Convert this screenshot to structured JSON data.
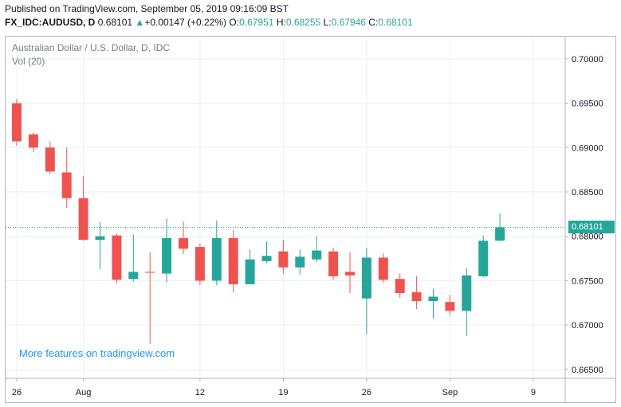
{
  "header": {
    "published": "Published on TradingView.com, September 05, 2019 09:16:09 BST",
    "symbol": "FX_IDC:AUDUSD, D",
    "last": "0.68101",
    "change_arrow": "▲",
    "change": "+0.00147 (+0.22%)",
    "o_label": "O:",
    "o_value": "0.67951",
    "h_label": "H:",
    "h_value": "0.68255",
    "l_label": "L:",
    "l_value": "0.67946",
    "c_label": "C:",
    "c_value": "0.68101"
  },
  "legend": {
    "title": "Australian Dollar / U.S. Dollar, D, IDC",
    "volume": "Vol (20)"
  },
  "promo_link": "More features on tradingview.com",
  "colors": {
    "up": "#26a69a",
    "down": "#ef5350",
    "grid": "#e9eff5",
    "axis_text": "#131722",
    "last_price_line": "#26a69a",
    "promo": "#2196f3"
  },
  "chart_data": {
    "type": "candlestick",
    "ylim": [
      0.664,
      0.7025
    ],
    "y_ticks": [
      "0.70000",
      "0.69500",
      "0.69000",
      "0.68500",
      "0.68000",
      "0.67500",
      "0.67000",
      "0.66500"
    ],
    "y_tick_values": [
      0.7,
      0.695,
      0.69,
      0.685,
      0.68,
      0.675,
      0.67,
      0.665
    ],
    "x_ticks": [
      "26",
      "Aug",
      "12",
      "19",
      "26",
      "Sep",
      "9"
    ],
    "x_tick_indices": [
      0,
      4,
      11,
      16,
      21,
      26,
      31
    ],
    "last_price": 0.68101,
    "last_price_label": "0.68101",
    "grid": true,
    "candles": [
      {
        "date": "2019-07-26",
        "o": 0.695,
        "h": 0.6955,
        "l": 0.6902,
        "c": 0.6907
      },
      {
        "date": "2019-07-29",
        "o": 0.6915,
        "h": 0.6917,
        "l": 0.6895,
        "c": 0.69
      },
      {
        "date": "2019-07-30",
        "o": 0.69,
        "h": 0.6907,
        "l": 0.687,
        "c": 0.6873
      },
      {
        "date": "2019-07-31",
        "o": 0.6872,
        "h": 0.69,
        "l": 0.6832,
        "c": 0.6843
      },
      {
        "date": "2019-08-01",
        "o": 0.6843,
        "h": 0.6868,
        "l": 0.6795,
        "c": 0.6796
      },
      {
        "date": "2019-08-02",
        "o": 0.6796,
        "h": 0.6816,
        "l": 0.6763,
        "c": 0.68
      },
      {
        "date": "2019-08-05",
        "o": 0.6801,
        "h": 0.6803,
        "l": 0.6747,
        "c": 0.6751
      },
      {
        "date": "2019-08-06",
        "o": 0.6752,
        "h": 0.6802,
        "l": 0.6749,
        "c": 0.676
      },
      {
        "date": "2019-08-07",
        "o": 0.676,
        "h": 0.6782,
        "l": 0.6679,
        "c": 0.6759
      },
      {
        "date": "2019-08-08",
        "o": 0.6758,
        "h": 0.682,
        "l": 0.6748,
        "c": 0.6798
      },
      {
        "date": "2019-08-09",
        "o": 0.6798,
        "h": 0.6817,
        "l": 0.678,
        "c": 0.6786
      },
      {
        "date": "2019-08-12",
        "o": 0.6788,
        "h": 0.6792,
        "l": 0.6745,
        "c": 0.675
      },
      {
        "date": "2019-08-13",
        "o": 0.675,
        "h": 0.6818,
        "l": 0.6745,
        "c": 0.6798
      },
      {
        "date": "2019-08-14",
        "o": 0.6798,
        "h": 0.6807,
        "l": 0.6737,
        "c": 0.6746
      },
      {
        "date": "2019-08-15",
        "o": 0.6746,
        "h": 0.6785,
        "l": 0.6746,
        "c": 0.6774
      },
      {
        "date": "2019-08-16",
        "o": 0.6772,
        "h": 0.6794,
        "l": 0.677,
        "c": 0.6778
      },
      {
        "date": "2019-08-19",
        "o": 0.6783,
        "h": 0.6796,
        "l": 0.6758,
        "c": 0.6765
      },
      {
        "date": "2019-08-20",
        "o": 0.6765,
        "h": 0.6785,
        "l": 0.6757,
        "c": 0.6777
      },
      {
        "date": "2019-08-21",
        "o": 0.6774,
        "h": 0.68,
        "l": 0.6771,
        "c": 0.6784
      },
      {
        "date": "2019-08-22",
        "o": 0.6783,
        "h": 0.6787,
        "l": 0.6751,
        "c": 0.6755
      },
      {
        "date": "2019-08-23",
        "o": 0.676,
        "h": 0.6782,
        "l": 0.6736,
        "c": 0.6756
      },
      {
        "date": "2019-08-26",
        "o": 0.673,
        "h": 0.6787,
        "l": 0.669,
        "c": 0.6776
      },
      {
        "date": "2019-08-27",
        "o": 0.6776,
        "h": 0.6781,
        "l": 0.6748,
        "c": 0.6751
      },
      {
        "date": "2019-08-28",
        "o": 0.6752,
        "h": 0.6758,
        "l": 0.6731,
        "c": 0.6736
      },
      {
        "date": "2019-08-29",
        "o": 0.6737,
        "h": 0.6755,
        "l": 0.6718,
        "c": 0.6727
      },
      {
        "date": "2019-08-30",
        "o": 0.6727,
        "h": 0.6741,
        "l": 0.6707,
        "c": 0.6732
      },
      {
        "date": "2019-09-02",
        "o": 0.6726,
        "h": 0.6734,
        "l": 0.6711,
        "c": 0.6716
      },
      {
        "date": "2019-09-03",
        "o": 0.6716,
        "h": 0.6764,
        "l": 0.6688,
        "c": 0.6756
      },
      {
        "date": "2019-09-04",
        "o": 0.6755,
        "h": 0.6801,
        "l": 0.6754,
        "c": 0.6795
      },
      {
        "date": "2019-09-05",
        "o": 0.67951,
        "h": 0.68255,
        "l": 0.67946,
        "c": 0.68101
      }
    ]
  }
}
